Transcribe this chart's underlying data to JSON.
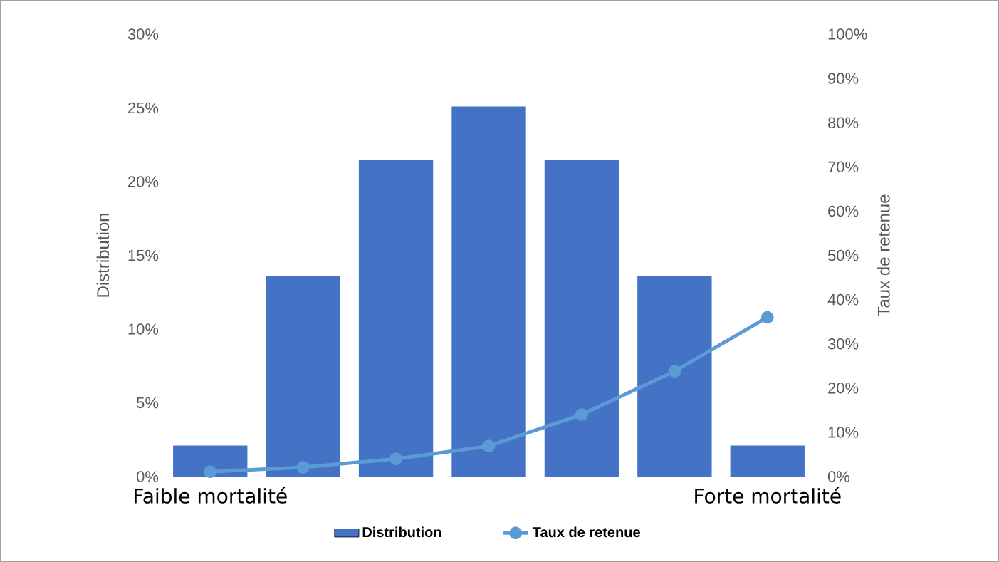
{
  "chart_data": {
    "type": "bar",
    "ylabel": "Distribution",
    "y2label": "Taux de retenue",
    "categories": [
      "Faible mortalité",
      null,
      null,
      null,
      null,
      null,
      "Forte mortalité"
    ],
    "series": [
      {
        "name": "Distribution",
        "color": "#4472c4",
        "values": [
          2.1,
          13.6,
          21.5,
          25.1,
          21.5,
          13.6,
          2.1
        ]
      },
      {
        "name": "Taux de retenue",
        "type": "line",
        "axis": "y2",
        "color": "#5b9bd5",
        "values": [
          1.1,
          2.1,
          4.0,
          6.9,
          14.0,
          23.8,
          36.0
        ]
      }
    ],
    "ylim": [
      0,
      30
    ],
    "yticks": [
      {
        "value": 0,
        "label": "0%"
      },
      {
        "value": 5,
        "label": "5%"
      },
      {
        "value": 10,
        "label": "10%"
      },
      {
        "value": 15,
        "label": "15%"
      },
      {
        "value": 20,
        "label": "20%"
      },
      {
        "value": 25,
        "label": "25%"
      },
      {
        "value": 30,
        "label": "30%"
      }
    ],
    "y2lim": [
      0,
      100
    ],
    "y2ticks": [
      {
        "value": 0,
        "label": "0%"
      },
      {
        "value": 10,
        "label": "10%"
      },
      {
        "value": 20,
        "label": "20%"
      },
      {
        "value": 30,
        "label": "30%"
      },
      {
        "value": 40,
        "label": "40%"
      },
      {
        "value": 50,
        "label": "50%"
      },
      {
        "value": 60,
        "label": "60%"
      },
      {
        "value": 70,
        "label": "70%"
      },
      {
        "value": 80,
        "label": "80%"
      },
      {
        "value": 90,
        "label": "90%"
      },
      {
        "value": 100,
        "label": "100%"
      }
    ],
    "legend": "bottom",
    "marker": "circle",
    "line_style": "solid"
  }
}
